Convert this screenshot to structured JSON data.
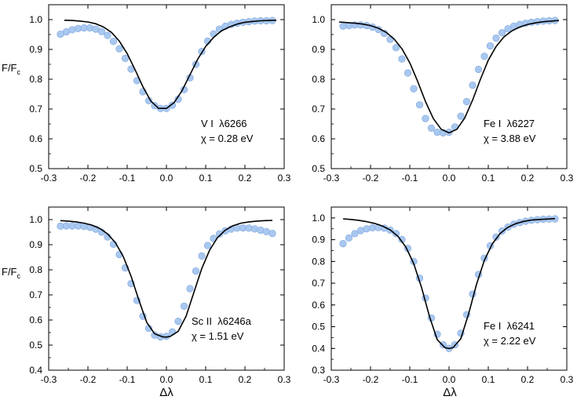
{
  "figure": {
    "ylabel_main": "F/F",
    "ylabel_sub": "c",
    "xlabel": "Δλ"
  },
  "colors": {
    "observed_fill": "#a9c8f0",
    "observed_stroke": "#7fa6dc",
    "model_line": "#000000"
  },
  "chart_data": [
    {
      "type": "scatter",
      "panel": "top-left",
      "line_label": "V I  λ6266",
      "excitation_label": "χ = 0.28 eV",
      "xlim": [
        -0.3,
        0.3
      ],
      "ylim": [
        0.5,
        1.05
      ],
      "xticks": [
        "-0.3",
        "-0.2",
        "-0.1",
        "0.0",
        "0.1",
        "0.2",
        "0.3"
      ],
      "yticks": [
        "0.5",
        "0.6",
        "0.7",
        "0.8",
        "0.9",
        "1.0"
      ],
      "series": [
        {
          "kind": "points",
          "x": [
            -0.27,
            -0.255,
            -0.24,
            -0.225,
            -0.21,
            -0.195,
            -0.18,
            -0.165,
            -0.15,
            -0.135,
            -0.12,
            -0.105,
            -0.09,
            -0.075,
            -0.06,
            -0.045,
            -0.03,
            -0.015,
            0.0,
            0.015,
            0.03,
            0.045,
            0.06,
            0.075,
            0.09,
            0.105,
            0.12,
            0.135,
            0.15,
            0.165,
            0.18,
            0.195,
            0.21,
            0.225,
            0.24,
            0.255,
            0.27
          ],
          "y": [
            0.951,
            0.959,
            0.966,
            0.97,
            0.972,
            0.972,
            0.968,
            0.96,
            0.947,
            0.927,
            0.902,
            0.87,
            0.834,
            0.795,
            0.758,
            0.728,
            0.711,
            0.702,
            0.702,
            0.713,
            0.733,
            0.765,
            0.805,
            0.85,
            0.893,
            0.928,
            0.952,
            0.968,
            0.978,
            0.984,
            0.988,
            0.991,
            0.993,
            0.995,
            0.996,
            0.996,
            0.997
          ]
        },
        {
          "kind": "line",
          "x": [
            -0.26,
            -0.24,
            -0.22,
            -0.2,
            -0.18,
            -0.16,
            -0.14,
            -0.12,
            -0.1,
            -0.08,
            -0.06,
            -0.04,
            -0.02,
            0.0,
            0.02,
            0.04,
            0.06,
            0.08,
            0.1,
            0.12,
            0.14,
            0.16,
            0.18,
            0.2,
            0.22,
            0.24,
            0.26,
            0.28
          ],
          "y": [
            0.998,
            0.997,
            0.995,
            0.992,
            0.986,
            0.975,
            0.957,
            0.928,
            0.886,
            0.832,
            0.775,
            0.727,
            0.702,
            0.702,
            0.722,
            0.762,
            0.815,
            0.868,
            0.91,
            0.94,
            0.962,
            0.975,
            0.985,
            0.991,
            0.994,
            0.996,
            0.997,
            0.998
          ]
        }
      ]
    },
    {
      "type": "scatter",
      "panel": "top-right",
      "line_label": "Fe I  λ6227",
      "excitation_label": "χ = 3.88 eV",
      "xlim": [
        -0.3,
        0.3
      ],
      "ylim": [
        0.5,
        1.05
      ],
      "xticks": [
        "-0.3",
        "-0.2",
        "-0.1",
        "0.0",
        "0.1",
        "0.2",
        "0.3"
      ],
      "yticks": [
        "0.5",
        "0.6",
        "0.7",
        "0.8",
        "0.9",
        "1.0"
      ],
      "series": [
        {
          "kind": "points",
          "x": [
            -0.27,
            -0.255,
            -0.24,
            -0.225,
            -0.21,
            -0.195,
            -0.18,
            -0.165,
            -0.15,
            -0.135,
            -0.12,
            -0.105,
            -0.09,
            -0.075,
            -0.06,
            -0.045,
            -0.03,
            -0.015,
            0.0,
            0.015,
            0.03,
            0.045,
            0.06,
            0.075,
            0.09,
            0.105,
            0.12,
            0.135,
            0.15,
            0.165,
            0.18,
            0.195,
            0.21,
            0.225,
            0.24,
            0.255,
            0.27
          ],
          "y": [
            0.978,
            0.98,
            0.982,
            0.982,
            0.98,
            0.975,
            0.967,
            0.954,
            0.934,
            0.906,
            0.868,
            0.821,
            0.768,
            0.714,
            0.668,
            0.636,
            0.622,
            0.62,
            0.622,
            0.64,
            0.676,
            0.725,
            0.78,
            0.833,
            0.877,
            0.912,
            0.938,
            0.956,
            0.969,
            0.978,
            0.984,
            0.988,
            0.991,
            0.993,
            0.995,
            0.996,
            0.997
          ]
        },
        {
          "kind": "line",
          "x": [
            -0.28,
            -0.26,
            -0.24,
            -0.22,
            -0.2,
            -0.18,
            -0.16,
            -0.14,
            -0.12,
            -0.1,
            -0.08,
            -0.06,
            -0.04,
            -0.02,
            0.0,
            0.02,
            0.04,
            0.06,
            0.08,
            0.1,
            0.12,
            0.14,
            0.16,
            0.18,
            0.2,
            0.22,
            0.24,
            0.26,
            0.28
          ],
          "y": [
            0.992,
            0.99,
            0.988,
            0.985,
            0.98,
            0.971,
            0.957,
            0.935,
            0.902,
            0.855,
            0.793,
            0.725,
            0.668,
            0.632,
            0.62,
            0.632,
            0.67,
            0.73,
            0.8,
            0.864,
            0.91,
            0.942,
            0.962,
            0.975,
            0.984,
            0.989,
            0.993,
            0.995,
            0.997
          ]
        }
      ]
    },
    {
      "type": "scatter",
      "panel": "bottom-left",
      "line_label": "Sc II  λ6246a",
      "excitation_label": "χ = 1.51 eV",
      "xlim": [
        -0.3,
        0.3
      ],
      "ylim": [
        0.4,
        1.05
      ],
      "xticks": [
        "-0.3",
        "-0.2",
        "-0.1",
        "0.0",
        "0.1",
        "0.2",
        "0.3"
      ],
      "yticks": [
        "0.4",
        "0.5",
        "0.6",
        "0.7",
        "0.8",
        "0.9",
        "1.0"
      ],
      "series": [
        {
          "kind": "points",
          "x": [
            -0.27,
            -0.255,
            -0.24,
            -0.225,
            -0.21,
            -0.195,
            -0.18,
            -0.165,
            -0.15,
            -0.135,
            -0.12,
            -0.105,
            -0.09,
            -0.075,
            -0.06,
            -0.045,
            -0.03,
            -0.015,
            0.0,
            0.015,
            0.03,
            0.045,
            0.06,
            0.075,
            0.09,
            0.105,
            0.12,
            0.135,
            0.15,
            0.165,
            0.18,
            0.195,
            0.21,
            0.225,
            0.24,
            0.255,
            0.27
          ],
          "y": [
            0.974,
            0.975,
            0.975,
            0.975,
            0.973,
            0.969,
            0.962,
            0.95,
            0.931,
            0.902,
            0.861,
            0.808,
            0.745,
            0.678,
            0.615,
            0.567,
            0.54,
            0.533,
            0.535,
            0.553,
            0.595,
            0.655,
            0.725,
            0.795,
            0.855,
            0.897,
            0.925,
            0.943,
            0.955,
            0.962,
            0.966,
            0.967,
            0.966,
            0.963,
            0.958,
            0.952,
            0.945
          ]
        },
        {
          "kind": "line",
          "x": [
            -0.27,
            -0.25,
            -0.23,
            -0.21,
            -0.19,
            -0.17,
            -0.15,
            -0.13,
            -0.11,
            -0.09,
            -0.07,
            -0.05,
            -0.03,
            -0.01,
            0.0,
            0.01,
            0.03,
            0.05,
            0.07,
            0.09,
            0.11,
            0.13,
            0.15,
            0.17,
            0.19,
            0.21,
            0.23,
            0.25,
            0.27
          ],
          "y": [
            0.996,
            0.994,
            0.991,
            0.986,
            0.978,
            0.965,
            0.943,
            0.908,
            0.853,
            0.774,
            0.678,
            0.59,
            0.545,
            0.533,
            0.532,
            0.535,
            0.555,
            0.615,
            0.71,
            0.805,
            0.878,
            0.928,
            0.958,
            0.976,
            0.986,
            0.991,
            0.994,
            0.996,
            0.997
          ]
        }
      ]
    },
    {
      "type": "scatter",
      "panel": "bottom-right",
      "line_label": "Fe I  λ6241",
      "excitation_label": "χ = 2.22 eV",
      "xlim": [
        -0.3,
        0.3
      ],
      "ylim": [
        0.3,
        1.05
      ],
      "xticks": [
        "-0.3",
        "-0.2",
        "-0.1",
        "0.0",
        "0.1",
        "0.2",
        "0.3"
      ],
      "yticks": [
        "0.3",
        "0.4",
        "0.5",
        "0.6",
        "0.7",
        "0.8",
        "0.9",
        "1.0"
      ],
      "series": [
        {
          "kind": "points",
          "x": [
            -0.27,
            -0.255,
            -0.24,
            -0.225,
            -0.21,
            -0.195,
            -0.18,
            -0.165,
            -0.15,
            -0.135,
            -0.12,
            -0.105,
            -0.09,
            -0.075,
            -0.06,
            -0.045,
            -0.03,
            -0.015,
            0.0,
            0.015,
            0.03,
            0.045,
            0.06,
            0.075,
            0.09,
            0.105,
            0.12,
            0.135,
            0.15,
            0.165,
            0.18,
            0.195,
            0.21,
            0.225,
            0.24,
            0.255,
            0.27
          ],
          "y": [
            0.882,
            0.908,
            0.928,
            0.942,
            0.95,
            0.955,
            0.956,
            0.953,
            0.944,
            0.928,
            0.901,
            0.86,
            0.8,
            0.723,
            0.632,
            0.54,
            0.465,
            0.417,
            0.4,
            0.417,
            0.47,
            0.555,
            0.65,
            0.74,
            0.815,
            0.872,
            0.912,
            0.94,
            0.958,
            0.971,
            0.979,
            0.985,
            0.989,
            0.992,
            0.994,
            0.995,
            0.996
          ]
        },
        {
          "kind": "line",
          "x": [
            -0.27,
            -0.25,
            -0.23,
            -0.21,
            -0.19,
            -0.17,
            -0.15,
            -0.13,
            -0.11,
            -0.09,
            -0.07,
            -0.05,
            -0.03,
            -0.01,
            0.0,
            0.01,
            0.03,
            0.05,
            0.07,
            0.09,
            0.11,
            0.13,
            0.15,
            0.17,
            0.19,
            0.21,
            0.23,
            0.25,
            0.27
          ],
          "y": [
            0.996,
            0.993,
            0.989,
            0.983,
            0.975,
            0.963,
            0.945,
            0.915,
            0.866,
            0.79,
            0.68,
            0.548,
            0.44,
            0.403,
            0.4,
            0.403,
            0.445,
            0.56,
            0.695,
            0.805,
            0.88,
            0.928,
            0.957,
            0.974,
            0.984,
            0.99,
            0.993,
            0.995,
            0.997
          ]
        }
      ]
    }
  ]
}
